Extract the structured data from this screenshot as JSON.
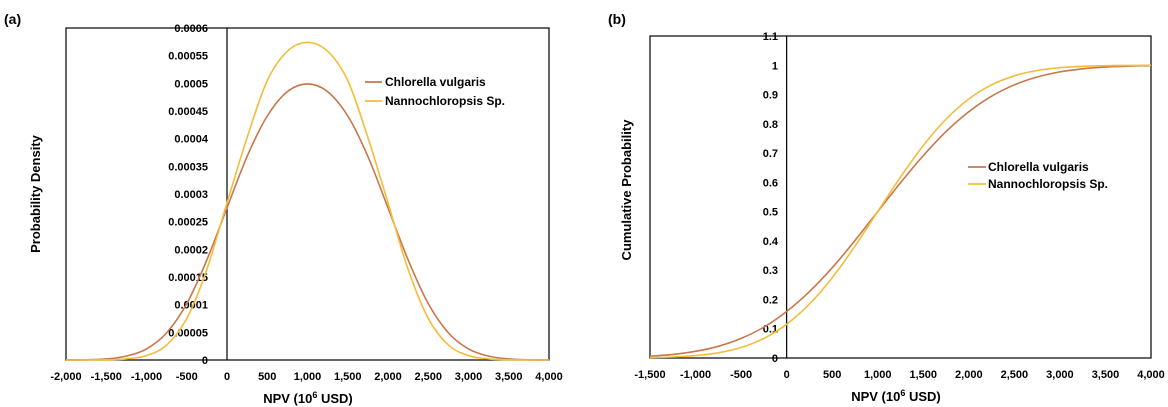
{
  "colors": {
    "chlorella": "#c8764a",
    "nanno": "#f3bd3a"
  },
  "chart_data": [
    {
      "panel_label": "(a)",
      "type": "line",
      "xlabel_pre": "NPV (10",
      "xlabel_sup": "6",
      "xlabel_post": " USD)",
      "ylabel": "Probability Density",
      "xlim": [
        -2000,
        4000
      ],
      "ylim": [
        0,
        0.0006
      ],
      "xticks": [
        -2000,
        -1500,
        -1000,
        -500,
        0,
        500,
        1000,
        1500,
        2000,
        2500,
        3000,
        3500,
        4000
      ],
      "xtick_labels": [
        "-2,000",
        "-1,500",
        "-1,000",
        "-500",
        "0",
        "500",
        "1,000",
        "1,500",
        "2,000",
        "2,500",
        "3,000",
        "3,500",
        "4,000"
      ],
      "yticks": [
        0,
        5e-05,
        0.0001,
        0.00015,
        0.0002,
        0.00025,
        0.0003,
        0.00035,
        0.0004,
        0.00045,
        0.0005,
        0.00055,
        0.0006
      ],
      "ytick_labels": [
        "0",
        "0.00005",
        "0.0001",
        "0.00015",
        "0.0002",
        "0.00025",
        "0.0003",
        "0.00035",
        "0.0004",
        "0.00045",
        "0.0005",
        "0.00055",
        "0.0006"
      ],
      "legend_position": "upper-right",
      "series": [
        {
          "name": "Chlorella vulgaris",
          "x": [
            -2000,
            -1750,
            -1500,
            -1250,
            -1000,
            -750,
            -500,
            -250,
            0,
            250,
            500,
            750,
            1000,
            1250,
            1500,
            1750,
            2000,
            2250,
            2500,
            2750,
            3000,
            3250,
            3500,
            3750,
            4000
          ],
          "y": [
            1e-07,
            4e-07,
            2e-06,
            7e-06,
            2e-05,
            4.9e-05,
            0.000102,
            0.000181,
            0.000275,
            0.000368,
            0.000441,
            0.000485,
            0.000499,
            0.000485,
            0.000441,
            0.000368,
            0.000275,
            0.000181,
            0.000102,
            4.9e-05,
            2e-05,
            7e-06,
            2e-06,
            4e-07,
            1e-07
          ]
        },
        {
          "name": "Nannochloropsis Sp.",
          "x": [
            -2000,
            -1750,
            -1500,
            -1250,
            -1000,
            -750,
            -500,
            -250,
            0,
            250,
            500,
            750,
            1000,
            1250,
            1500,
            1750,
            2000,
            2250,
            2500,
            2750,
            3000,
            3250,
            3500,
            3750,
            4000
          ],
          "y": [
            0.0,
            1e-07,
            4e-07,
            2e-06,
            8e-06,
            2.7e-05,
            7.5e-05,
            0.000164,
            0.000284,
            0.000402,
            0.000505,
            0.000558,
            0.000574,
            0.000558,
            0.000505,
            0.000402,
            0.000284,
            0.000164,
            7.5e-05,
            2.7e-05,
            8e-06,
            2e-06,
            4e-07,
            1e-07,
            0.0
          ]
        }
      ]
    },
    {
      "panel_label": "(b)",
      "type": "line",
      "xlabel_pre": "NPV (10",
      "xlabel_sup": "6",
      "xlabel_post": " USD)",
      "ylabel": "Cumulative Probability",
      "xlim": [
        -1500,
        4000
      ],
      "ylim": [
        0,
        1.1
      ],
      "xticks": [
        -1500,
        -1000,
        -500,
        0,
        500,
        1000,
        1500,
        2000,
        2500,
        3000,
        3500,
        4000
      ],
      "xtick_labels": [
        "-1,500",
        "-1,000",
        "-500",
        "0",
        "500",
        "1,000",
        "1,500",
        "2,000",
        "2,500",
        "3,000",
        "3,500",
        "4,000"
      ],
      "yticks": [
        0,
        0.1,
        0.2,
        0.3,
        0.4,
        0.5,
        0.6,
        0.7,
        0.8,
        0.9,
        1,
        1.1
      ],
      "ytick_labels": [
        "0",
        "0.1",
        "0.2",
        "0.3",
        "0.4",
        "0.5",
        "0.6",
        "0.7",
        "0.8",
        "0.9",
        "1",
        "1.1"
      ],
      "legend_position": "center-right",
      "series": [
        {
          "name": "Chlorella vulgaris",
          "x": [
            -1500,
            -1250,
            -1000,
            -750,
            -500,
            -250,
            0,
            250,
            500,
            750,
            1000,
            1250,
            1500,
            1750,
            2000,
            2250,
            2500,
            2750,
            3000,
            3250,
            3500,
            3750,
            4000
          ],
          "y": [
            0.0062,
            0.0122,
            0.0228,
            0.0401,
            0.0668,
            0.1056,
            0.1587,
            0.2266,
            0.3085,
            0.4013,
            0.5,
            0.5987,
            0.6915,
            0.7734,
            0.8413,
            0.8944,
            0.9332,
            0.9599,
            0.9772,
            0.9878,
            0.9938,
            0.997,
            0.9987
          ]
        },
        {
          "name": "Nannochloropsis Sp.",
          "x": [
            -1500,
            -1250,
            -1000,
            -750,
            -500,
            -250,
            0,
            250,
            500,
            750,
            1000,
            1250,
            1500,
            1750,
            2000,
            2250,
            2500,
            2750,
            3000,
            3250,
            3500,
            3750,
            4000
          ],
          "y": [
            0.0013,
            0.0035,
            0.0082,
            0.0179,
            0.0359,
            0.0668,
            0.1151,
            0.1841,
            0.2743,
            0.3821,
            0.5,
            0.6179,
            0.7257,
            0.8159,
            0.8849,
            0.9332,
            0.9641,
            0.9821,
            0.9918,
            0.9965,
            0.9987,
            0.9995,
            0.9998
          ]
        }
      ]
    }
  ]
}
